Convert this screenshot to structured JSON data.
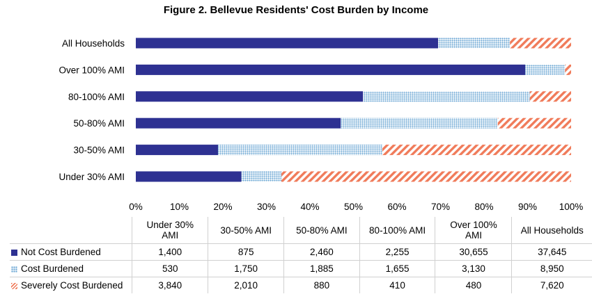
{
  "chart_data": {
    "type": "bar",
    "orientation": "horizontal",
    "stacked": "percent",
    "title": "Figure 2. Bellevue Residents' Cost Burden by Income",
    "categories": [
      "All Households",
      "Over 100% AMI",
      "80-100% AMI",
      "50-80% AMI",
      "30-50% AMI",
      "Under 30% AMI"
    ],
    "series": [
      {
        "name": "Not Cost Burdened",
        "color": "#2e3192",
        "pattern": "solid",
        "values": [
          37645,
          30655,
          2255,
          2460,
          875,
          1400
        ],
        "labels": [
          "37,645",
          "30,655",
          "2,255",
          "2,460",
          "875",
          "1,400"
        ]
      },
      {
        "name": "Cost Burdened",
        "color": "#6aa6d4",
        "pattern": "dots",
        "values": [
          8950,
          3130,
          1655,
          1885,
          1750,
          530
        ],
        "labels": [
          "8,950",
          "3,130",
          "1,655",
          "1,885",
          "1,750",
          "530"
        ]
      },
      {
        "name": "Severely Cost Burdened",
        "color": "#f07b5a",
        "pattern": "diagonal-stripes",
        "values": [
          7620,
          480,
          410,
          880,
          2010,
          3840
        ],
        "labels": [
          "7,620",
          "480",
          "410",
          "880",
          "2,010",
          "3,840"
        ]
      }
    ],
    "x_ticks": [
      "0%",
      "10%",
      "20%",
      "30%",
      "40%",
      "50%",
      "60%",
      "70%",
      "80%",
      "90%",
      "100%"
    ],
    "xlim": [
      0,
      100
    ],
    "grid": false,
    "legend": "data table below chart"
  },
  "table": {
    "columns": [
      "Under 30%\nAMI",
      "30-50% AMI",
      "50-80% AMI",
      "80-100% AMI",
      "Over 100%\nAMI",
      "All Households"
    ],
    "column_order": [
      "Under 30% AMI",
      "30-50% AMI",
      "50-80% AMI",
      "80-100% AMI",
      "Over 100% AMI",
      "All Households"
    ]
  }
}
